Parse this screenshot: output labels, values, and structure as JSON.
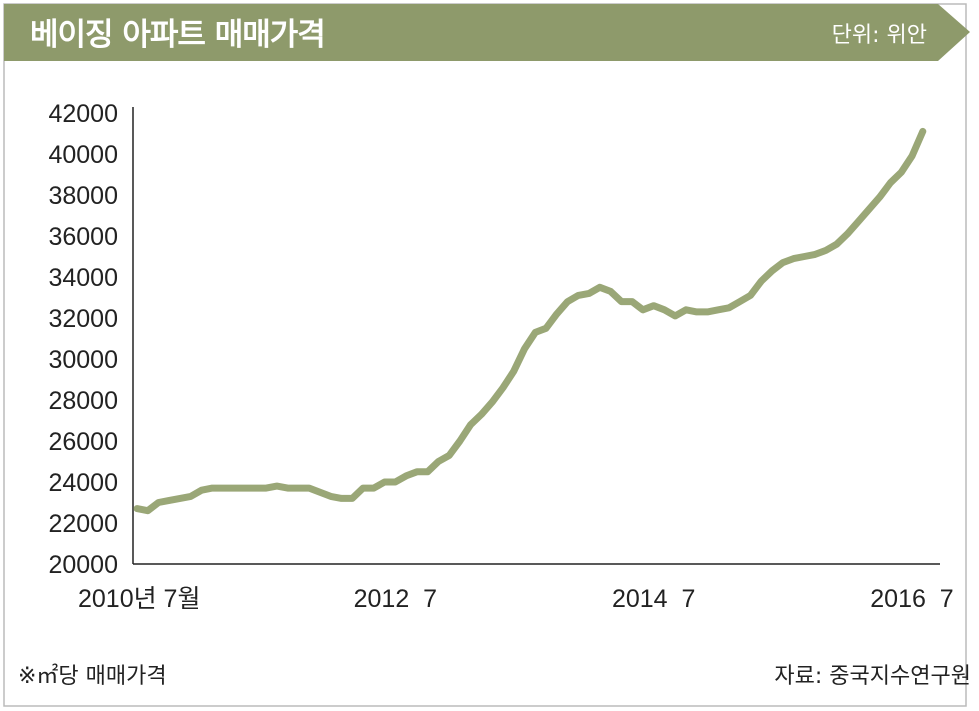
{
  "header": {
    "title": "베이징 아파트 매매가격",
    "unit": "단위: 위안",
    "banner_color": "#8e9a6b"
  },
  "footer": {
    "note": "※㎡당 매매가격",
    "source": "자료: 중국지수연구원"
  },
  "chart_data": {
    "type": "line",
    "title": "베이징 아파트 매매가격",
    "xlabel": "",
    "ylabel": "",
    "ylim": [
      20000,
      42000
    ],
    "yticks": [
      "42000",
      "40000",
      "38000",
      "36000",
      "34000",
      "32000",
      "30000",
      "28000",
      "26000",
      "24000",
      "22000",
      "20000"
    ],
    "xticks": [
      {
        "label": "2010년 7월",
        "x": "2010-07"
      },
      {
        "label": "2012  7",
        "x": "2012-07"
      },
      {
        "label": "2014  7",
        "x": "2014-07"
      },
      {
        "label": "2016  7",
        "x": "2016-07"
      }
    ],
    "grid": false,
    "line_color": "#9aa777",
    "series": [
      {
        "x": [
          "2010-07",
          "2010-08",
          "2010-09",
          "2010-10",
          "2010-11",
          "2010-12",
          "2011-01",
          "2011-02",
          "2011-03",
          "2011-04",
          "2011-05",
          "2011-06",
          "2011-07",
          "2011-08",
          "2011-09",
          "2011-10",
          "2011-11",
          "2011-12",
          "2012-01",
          "2012-02",
          "2012-03",
          "2012-04",
          "2012-05",
          "2012-06",
          "2012-07",
          "2012-08",
          "2012-09",
          "2012-10",
          "2012-11",
          "2012-12",
          "2013-01",
          "2013-02",
          "2013-03",
          "2013-04",
          "2013-05",
          "2013-06",
          "2013-07",
          "2013-08",
          "2013-09",
          "2013-10",
          "2013-11",
          "2013-12",
          "2014-01",
          "2014-02",
          "2014-03",
          "2014-04",
          "2014-05",
          "2014-06",
          "2014-07",
          "2014-08",
          "2014-09",
          "2014-10",
          "2014-11",
          "2014-12",
          "2015-01",
          "2015-02",
          "2015-03",
          "2015-04",
          "2015-05",
          "2015-06",
          "2015-07",
          "2015-08",
          "2015-09",
          "2015-10",
          "2015-11",
          "2015-12",
          "2016-01",
          "2016-02",
          "2016-03",
          "2016-04",
          "2016-05",
          "2016-06",
          "2016-07",
          "2016-08"
        ],
        "values": [
          22700,
          22600,
          23000,
          23100,
          23200,
          23300,
          23600,
          23700,
          23700,
          23700,
          23700,
          23700,
          23700,
          23800,
          23700,
          23700,
          23700,
          23500,
          23300,
          23200,
          23200,
          23700,
          23700,
          24000,
          24000,
          24300,
          24500,
          24500,
          25000,
          25300,
          26000,
          26800,
          27300,
          27900,
          28600,
          29400,
          30500,
          31300,
          31500,
          32200,
          32800,
          33100,
          33200,
          33500,
          33300,
          32800,
          32800,
          32400,
          32600,
          32400,
          32100,
          32400,
          32300,
          32300,
          32400,
          32500,
          32800,
          33100,
          33800,
          34300,
          34700,
          34900,
          35000,
          35100,
          35300,
          35600,
          36100,
          36700,
          37300,
          37900,
          38600,
          39100,
          39900,
          41100
        ]
      }
    ]
  }
}
